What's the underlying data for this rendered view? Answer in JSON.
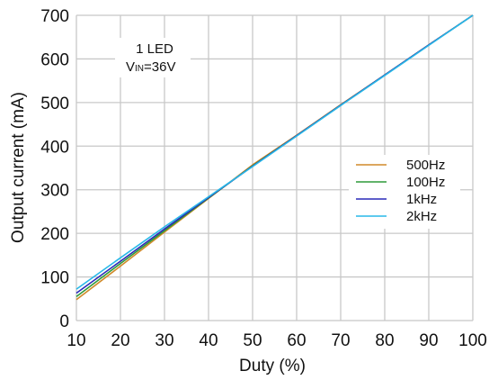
{
  "chart_data": {
    "type": "line",
    "xlabel": "Duty (%)",
    "ylabel": "Output current (mA)",
    "xlim": [
      10,
      100
    ],
    "ylim": [
      0,
      700
    ],
    "xticks": [
      10,
      20,
      30,
      40,
      50,
      60,
      70,
      80,
      90,
      100
    ],
    "yticks": [
      0,
      100,
      200,
      300,
      400,
      500,
      600,
      700
    ],
    "grid": true,
    "legend_position": "right",
    "annotation": {
      "line1": "1 LED",
      "line2_prefix": "V",
      "line2_sub": "IN",
      "line2_suffix": "=36V"
    },
    "series": [
      {
        "name": "500Hz",
        "color": "#d08a2a",
        "x": [
          10,
          20,
          30,
          40,
          50,
          60,
          70,
          80,
          90,
          100
        ],
        "y": [
          48,
          125,
          203,
          280,
          357,
          425,
          495,
          563,
          632,
          700
        ]
      },
      {
        "name": "100Hz",
        "color": "#2e9a3a",
        "x": [
          10,
          20,
          30,
          40,
          50,
          60,
          70,
          80,
          90,
          100
        ],
        "y": [
          55,
          131,
          206,
          281,
          355,
          424,
          494,
          563,
          632,
          700
        ]
      },
      {
        "name": "1kHz",
        "color": "#2a2ab8",
        "x": [
          10,
          20,
          30,
          40,
          50,
          60,
          70,
          80,
          90,
          100
        ],
        "y": [
          63,
          136,
          210,
          282,
          354,
          424,
          494,
          563,
          632,
          700
        ]
      },
      {
        "name": "2kHz",
        "color": "#28b8e8",
        "x": [
          10,
          20,
          30,
          40,
          50,
          60,
          70,
          80,
          90,
          100
        ],
        "y": [
          72,
          144,
          215,
          284,
          353,
          423,
          493,
          562,
          631,
          700
        ]
      }
    ]
  }
}
